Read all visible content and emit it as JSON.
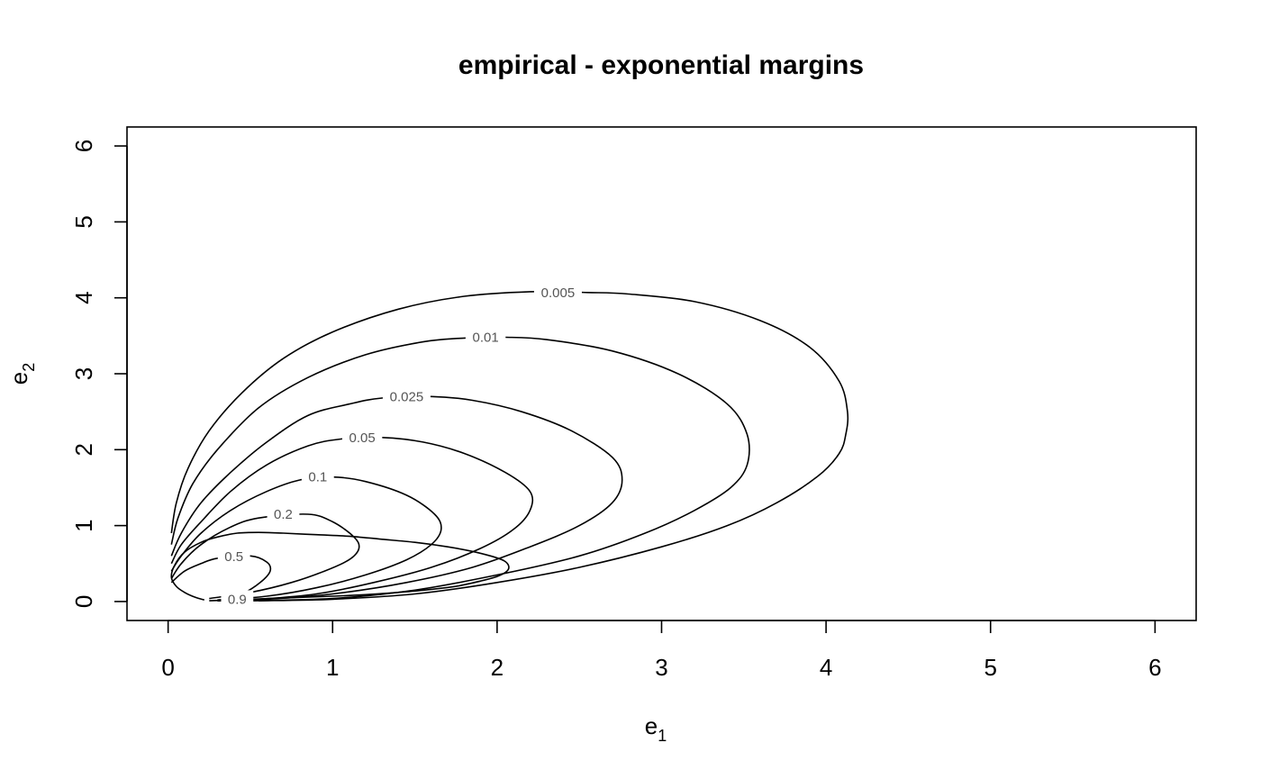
{
  "chart_data": {
    "type": "contour",
    "title": "empirical - exponential margins",
    "xlabel": {
      "main": "e",
      "sub": "1"
    },
    "ylabel": {
      "main": "e",
      "sub": "2"
    },
    "xlim": [
      -0.25,
      6.25
    ],
    "ylim": [
      -0.25,
      6.25
    ],
    "x_ticks": [
      0,
      1,
      2,
      3,
      4,
      5,
      6
    ],
    "y_ticks": [
      0,
      1,
      2,
      3,
      4,
      5,
      6
    ],
    "grid": false,
    "legend": "none",
    "contours": [
      {
        "level": "0.005",
        "label_at": [
          2.37,
          4.07
        ],
        "points": [
          [
            0.02,
            0.9
          ],
          [
            0.05,
            1.3
          ],
          [
            0.12,
            1.75
          ],
          [
            0.25,
            2.25
          ],
          [
            0.45,
            2.75
          ],
          [
            0.7,
            3.2
          ],
          [
            1.0,
            3.55
          ],
          [
            1.4,
            3.85
          ],
          [
            1.8,
            4.02
          ],
          [
            2.2,
            4.08
          ],
          [
            2.55,
            4.07
          ],
          [
            2.8,
            4.05
          ],
          [
            3.2,
            3.95
          ],
          [
            3.6,
            3.7
          ],
          [
            3.9,
            3.35
          ],
          [
            4.08,
            2.9
          ],
          [
            4.13,
            2.5
          ],
          [
            4.12,
            2.2
          ],
          [
            4.08,
            1.95
          ],
          [
            3.95,
            1.65
          ],
          [
            3.7,
            1.3
          ],
          [
            3.4,
            1.0
          ],
          [
            3.0,
            0.72
          ],
          [
            2.5,
            0.45
          ],
          [
            2.0,
            0.25
          ],
          [
            1.5,
            0.1
          ],
          [
            1.0,
            0.03
          ],
          [
            0.55,
            0.01
          ]
        ]
      },
      {
        "level": "0.01",
        "label_at": [
          1.93,
          3.48
        ],
        "points": [
          [
            0.02,
            0.75
          ],
          [
            0.06,
            1.1
          ],
          [
            0.15,
            1.55
          ],
          [
            0.3,
            2.0
          ],
          [
            0.55,
            2.55
          ],
          [
            0.85,
            2.95
          ],
          [
            1.2,
            3.25
          ],
          [
            1.55,
            3.42
          ],
          [
            1.8,
            3.47
          ],
          [
            2.05,
            3.48
          ],
          [
            2.3,
            3.45
          ],
          [
            2.7,
            3.3
          ],
          [
            3.1,
            3.0
          ],
          [
            3.4,
            2.6
          ],
          [
            3.52,
            2.2
          ],
          [
            3.52,
            1.8
          ],
          [
            3.42,
            1.5
          ],
          [
            3.2,
            1.2
          ],
          [
            2.9,
            0.9
          ],
          [
            2.5,
            0.6
          ],
          [
            2.0,
            0.35
          ],
          [
            1.5,
            0.15
          ],
          [
            1.0,
            0.04
          ],
          [
            0.5,
            0.01
          ]
        ]
      },
      {
        "level": "0.025",
        "label_at": [
          1.45,
          2.7
        ],
        "points": [
          [
            0.02,
            0.6
          ],
          [
            0.08,
            0.9
          ],
          [
            0.2,
            1.3
          ],
          [
            0.38,
            1.7
          ],
          [
            0.6,
            2.1
          ],
          [
            0.85,
            2.45
          ],
          [
            1.1,
            2.6
          ],
          [
            1.3,
            2.68
          ],
          [
            1.6,
            2.7
          ],
          [
            1.85,
            2.65
          ],
          [
            2.15,
            2.5
          ],
          [
            2.45,
            2.25
          ],
          [
            2.7,
            1.9
          ],
          [
            2.76,
            1.6
          ],
          [
            2.7,
            1.3
          ],
          [
            2.5,
            1.0
          ],
          [
            2.2,
            0.72
          ],
          [
            1.85,
            0.45
          ],
          [
            1.45,
            0.25
          ],
          [
            1.0,
            0.1
          ],
          [
            0.6,
            0.03
          ],
          [
            0.3,
            0.01
          ]
        ]
      },
      {
        "level": "0.05",
        "label_at": [
          1.18,
          2.16
        ],
        "points": [
          [
            0.02,
            0.5
          ],
          [
            0.08,
            0.75
          ],
          [
            0.2,
            1.05
          ],
          [
            0.38,
            1.45
          ],
          [
            0.6,
            1.8
          ],
          [
            0.85,
            2.05
          ],
          [
            1.05,
            2.14
          ],
          [
            1.3,
            2.16
          ],
          [
            1.55,
            2.1
          ],
          [
            1.8,
            1.95
          ],
          [
            2.05,
            1.7
          ],
          [
            2.2,
            1.45
          ],
          [
            2.2,
            1.2
          ],
          [
            2.1,
            0.95
          ],
          [
            1.9,
            0.7
          ],
          [
            1.6,
            0.45
          ],
          [
            1.25,
            0.25
          ],
          [
            0.9,
            0.1
          ],
          [
            0.55,
            0.03
          ],
          [
            0.3,
            0.01
          ]
        ]
      },
      {
        "level": "0.1",
        "label_at": [
          0.91,
          1.64
        ],
        "points": [
          [
            0.02,
            0.4
          ],
          [
            0.08,
            0.6
          ],
          [
            0.2,
            0.9
          ],
          [
            0.38,
            1.2
          ],
          [
            0.6,
            1.45
          ],
          [
            0.8,
            1.6
          ],
          [
            1.0,
            1.64
          ],
          [
            1.2,
            1.58
          ],
          [
            1.45,
            1.4
          ],
          [
            1.62,
            1.15
          ],
          [
            1.66,
            0.95
          ],
          [
            1.6,
            0.75
          ],
          [
            1.45,
            0.55
          ],
          [
            1.2,
            0.35
          ],
          [
            0.9,
            0.18
          ],
          [
            0.6,
            0.07
          ],
          [
            0.3,
            0.02
          ]
        ]
      },
      {
        "level": "0.2",
        "label_at": [
          0.7,
          1.15
        ],
        "points": [
          [
            0.02,
            0.3
          ],
          [
            0.08,
            0.5
          ],
          [
            0.2,
            0.75
          ],
          [
            0.38,
            0.98
          ],
          [
            0.55,
            1.1
          ],
          [
            0.85,
            1.15
          ],
          [
            1.0,
            1.05
          ],
          [
            1.13,
            0.85
          ],
          [
            1.16,
            0.7
          ],
          [
            1.1,
            0.55
          ],
          [
            0.95,
            0.4
          ],
          [
            0.75,
            0.25
          ],
          [
            0.5,
            0.12
          ],
          [
            0.25,
            0.04
          ]
        ]
      },
      {
        "level": "0.5",
        "label_at": [
          0.4,
          0.59
        ],
        "points": [
          [
            0.02,
            0.25
          ],
          [
            0.1,
            0.4
          ],
          [
            0.2,
            0.5
          ],
          [
            0.3,
            0.57
          ],
          [
            0.5,
            0.6
          ],
          [
            0.6,
            0.52
          ],
          [
            0.62,
            0.4
          ],
          [
            0.56,
            0.25
          ],
          [
            0.45,
            0.1
          ],
          [
            0.35,
            0.04
          ]
        ]
      },
      {
        "level": "0.9",
        "label_at": [
          0.42,
          0.03
        ],
        "points": [
          [
            0.25,
            0.01
          ],
          [
            0.5,
            0.03
          ],
          [
            0.75,
            0.05
          ],
          [
            1.0,
            0.07
          ],
          [
            1.2,
            0.09
          ],
          [
            1.4,
            0.12
          ],
          [
            1.6,
            0.16
          ],
          [
            1.75,
            0.2
          ],
          [
            1.9,
            0.27
          ],
          [
            2.0,
            0.33
          ],
          [
            2.06,
            0.4
          ],
          [
            2.07,
            0.47
          ],
          [
            2.04,
            0.54
          ],
          [
            1.96,
            0.6
          ],
          [
            1.85,
            0.66
          ],
          [
            1.7,
            0.72
          ],
          [
            1.5,
            0.78
          ],
          [
            1.3,
            0.82
          ],
          [
            1.1,
            0.86
          ],
          [
            0.9,
            0.88
          ],
          [
            0.7,
            0.9
          ],
          [
            0.55,
            0.91
          ],
          [
            0.42,
            0.9
          ],
          [
            0.3,
            0.85
          ],
          [
            0.2,
            0.78
          ],
          [
            0.1,
            0.65
          ],
          [
            0.04,
            0.48
          ],
          [
            0.02,
            0.32
          ],
          [
            0.05,
            0.2
          ],
          [
            0.1,
            0.12
          ],
          [
            0.16,
            0.06
          ],
          [
            0.22,
            0.02
          ]
        ]
      }
    ]
  }
}
